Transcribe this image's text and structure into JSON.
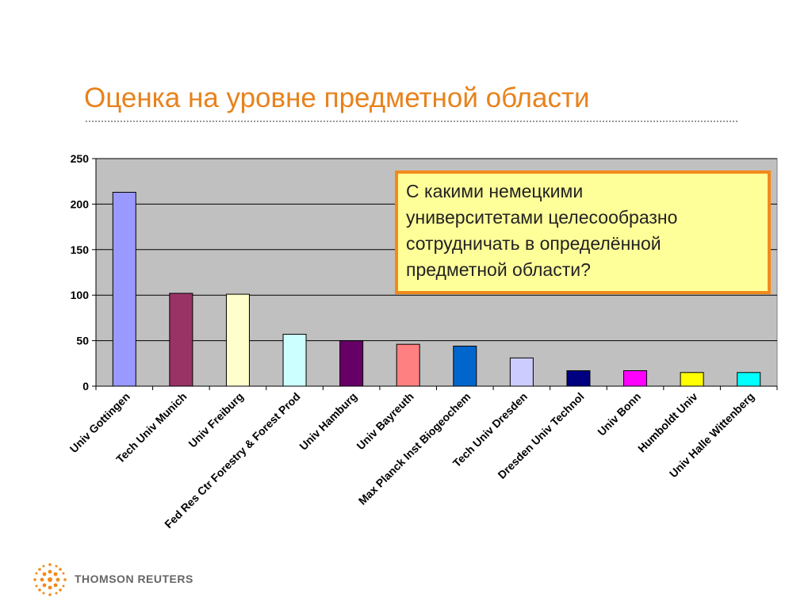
{
  "slide": {
    "title": "Оценка на уровне предметной области",
    "callout_lines": [
      "С какими немецкими",
      "университетами целесообразно",
      "сотрудничать в определённой",
      "предметной области?"
    ],
    "logo_text": "THOMSON REUTERS"
  },
  "colors": {
    "title": "#e8821c",
    "plot_background": "#c0c0c0",
    "callout_fill": "#ffff99",
    "callout_border": "#f28a1b"
  },
  "chart_data": {
    "type": "bar",
    "title": "",
    "xlabel": "",
    "ylabel": "",
    "ylim": [
      0,
      250
    ],
    "yticks": [
      0,
      50,
      100,
      150,
      200,
      250
    ],
    "grid": true,
    "categories": [
      "Univ Gottingen",
      "Tech Univ Munich",
      "Univ Freiburg",
      "Fed Res Ctr Forestry & Forest Prod",
      "Univ Hamburg",
      "Univ Bayreuth",
      "Max Planck Inst Biogeochem",
      "Tech Univ Dresden",
      "Dresden Univ Technol",
      "Univ Bonn",
      "Humboldt Univ",
      "Univ Halle Wittenberg"
    ],
    "values": [
      213,
      102,
      101,
      57,
      50,
      46,
      44,
      31,
      17,
      17,
      15,
      15
    ],
    "bar_colors": [
      "#9999ff",
      "#993366",
      "#ffffcc",
      "#ccffff",
      "#660066",
      "#ff8080",
      "#0066cc",
      "#ccccff",
      "#000080",
      "#ff00ff",
      "#ffff00",
      "#00ffff"
    ]
  }
}
